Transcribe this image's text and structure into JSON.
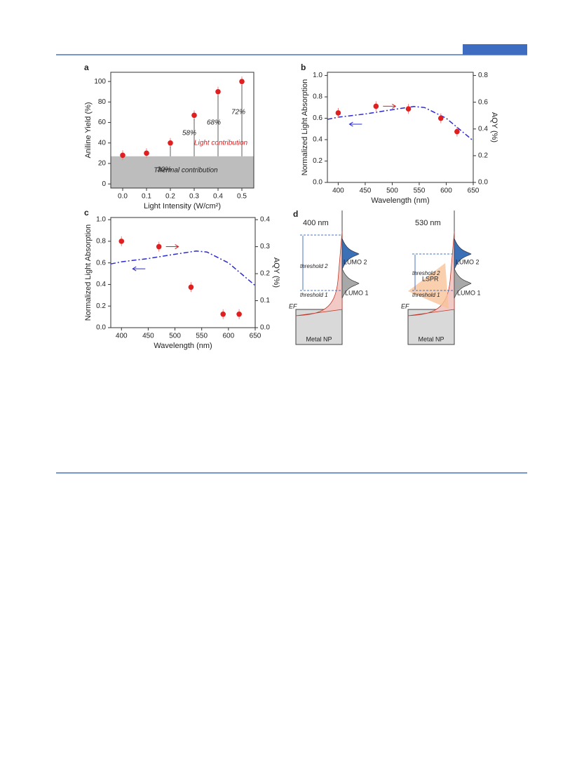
{
  "chart_data": [
    {
      "type": "scatter",
      "label": "a",
      "xlabel": "Light Intensity (W/cm²)",
      "ylabel": "Aniline Yield (%)",
      "xlim": [
        -0.05,
        0.55
      ],
      "xticks": [
        {
          "value": 0,
          "label": "0.0"
        },
        0.1,
        0.2,
        0.3,
        0.4,
        0.5
      ],
      "ylim": [
        -4,
        109
      ],
      "yticks": [
        0,
        20,
        40,
        60,
        80,
        100
      ],
      "shaded_to": 27,
      "series": [
        {
          "color": "#e02020",
          "x": [
            0,
            0.1,
            0.2,
            0.3,
            0.4,
            0.5
          ],
          "values": [
            28,
            30,
            40,
            67,
            90,
            100
          ]
        }
      ],
      "annotations": [
        "30%",
        "58%",
        "68%",
        "72%",
        "Light contribution",
        "Thermal contribution"
      ]
    },
    {
      "type": "line",
      "label": "b",
      "xlabel": "Wavelength (nm)",
      "ylabel": "Normalized Light Absorption",
      "y2label": "AQY (%)",
      "xlim": [
        380,
        650
      ],
      "xticks": [
        400,
        450,
        500,
        550,
        600,
        650
      ],
      "ylim": [
        0,
        1.03
      ],
      "yticks": [
        {
          "value": 0,
          "label": "0.0"
        },
        0.2,
        0.4,
        0.6,
        0.8,
        {
          "value": 1,
          "label": "1.0"
        }
      ],
      "y2lim": [
        0,
        0.824
      ],
      "y2ticks": [
        {
          "value": 0,
          "label": "0.0"
        },
        0.2,
        0.4,
        0.6,
        0.8
      ],
      "series": [
        {
          "color": "#2a2ad0",
          "x": [
            380,
            400,
            450,
            500,
            540,
            560,
            600,
            650
          ],
          "values": [
            0.59,
            0.61,
            0.64,
            0.68,
            0.71,
            0.7,
            0.6,
            0.39
          ]
        },
        {
          "color": "#e02020",
          "axis": "y2",
          "x": [
            400,
            470,
            530,
            590,
            620
          ],
          "values": [
            0.52,
            0.57,
            0.55,
            0.48,
            0.38
          ]
        }
      ]
    },
    {
      "type": "line",
      "label": "c",
      "xlabel": "Wavelength (nm)",
      "ylabel": "Normalized Light Absorption",
      "y2label": "AQY (%)",
      "xlim": [
        380,
        650
      ],
      "xticks": [
        400,
        450,
        500,
        550,
        600,
        650
      ],
      "ylim": [
        0,
        1.02
      ],
      "yticks": [
        {
          "value": 0,
          "label": "0.0"
        },
        0.2,
        0.4,
        0.6,
        0.8,
        {
          "value": 1,
          "label": "1.0"
        }
      ],
      "y2lim": [
        0,
        0.408
      ],
      "y2ticks": [
        {
          "value": 0,
          "label": "0.0"
        },
        0.1,
        0.2,
        0.3,
        0.4
      ],
      "series": [
        {
          "color": "#2a2ad0",
          "x": [
            380,
            400,
            450,
            500,
            540,
            560,
            600,
            650
          ],
          "values": [
            0.59,
            0.61,
            0.64,
            0.68,
            0.71,
            0.7,
            0.6,
            0.39
          ]
        },
        {
          "color": "#e02020",
          "axis": "y2",
          "x": [
            400,
            470,
            530,
            590,
            620
          ],
          "values": [
            0.32,
            0.3,
            0.15,
            0.05,
            0.05
          ]
        }
      ]
    }
  ],
  "diagram": {
    "label": "d",
    "panels": [
      {
        "title": "400 nm",
        "lumo2": "LUMO 2",
        "lumo1": "LUMO 1",
        "threshold2": "threshold 2",
        "threshold1": "threshold 1",
        "fermi": "EF",
        "metal": "Metal NP"
      },
      {
        "title": "530 nm",
        "lumo2": "LUMO 2",
        "lumo1": "LUMO 1",
        "threshold2": "threshold 2",
        "threshold1": "threshold 1",
        "fermi": "EF",
        "metal": "Metal NP",
        "lspr": "LSPR"
      }
    ]
  }
}
